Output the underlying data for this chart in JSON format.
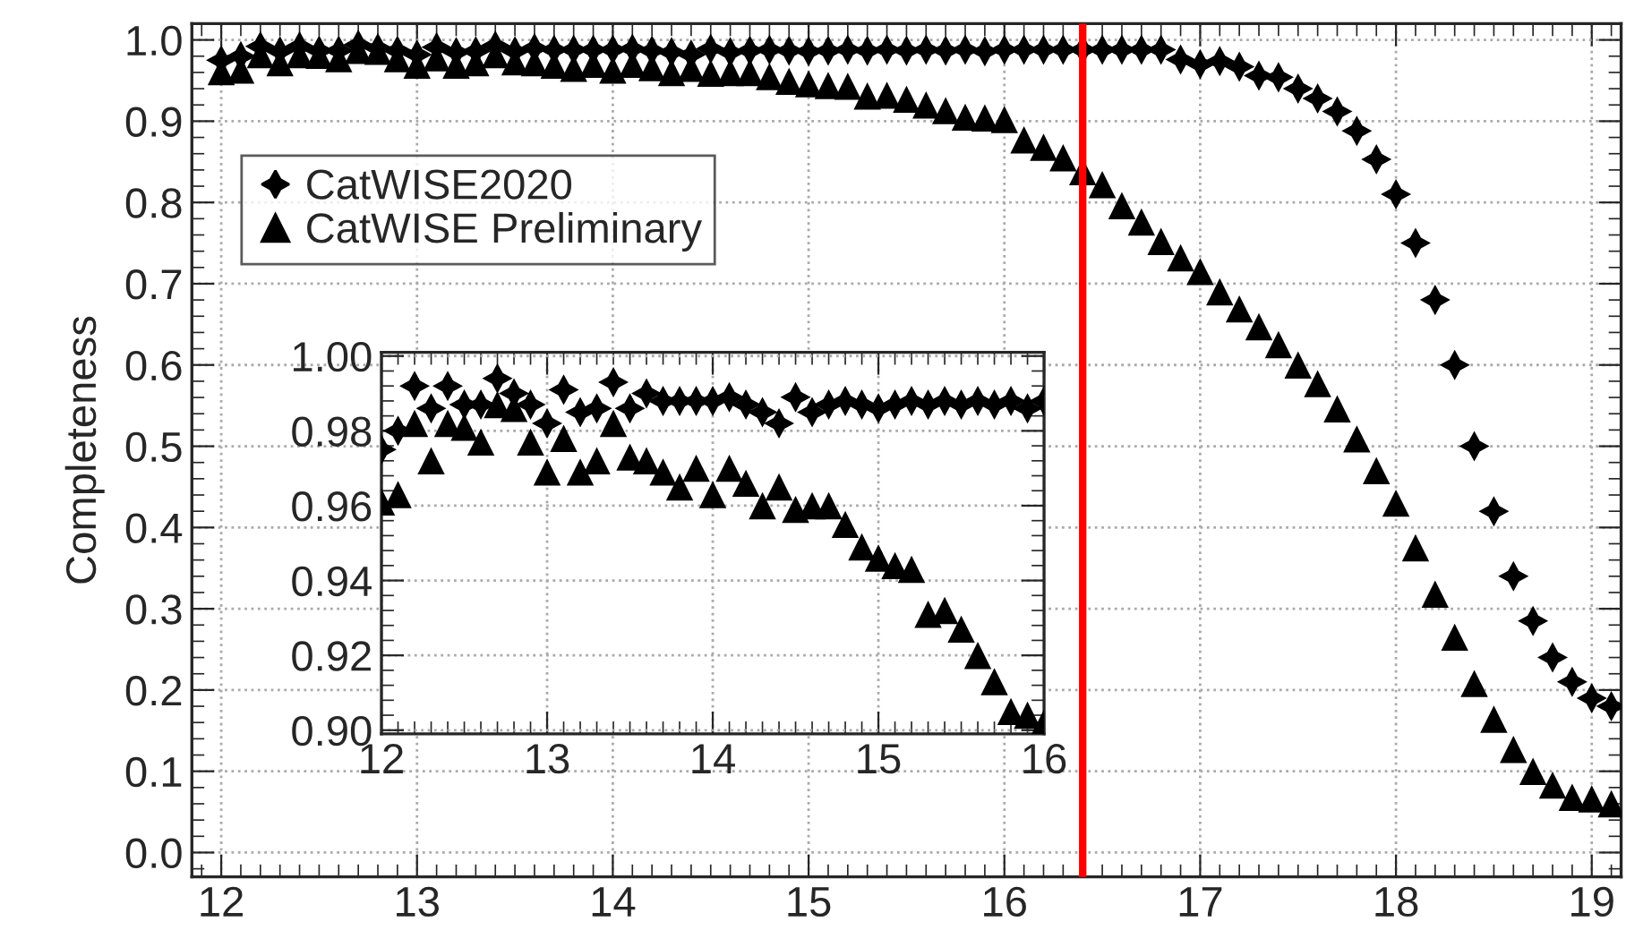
{
  "chart_data": [
    {
      "type": "scatter",
      "ylabel": "Completeness",
      "xlim": [
        11.85,
        19.15
      ],
      "ylim": [
        -0.03,
        1.02
      ],
      "xticks": [
        12,
        13,
        14,
        15,
        16,
        17,
        18,
        19
      ],
      "yticks": [
        {
          "value": 0,
          "label": "0.0"
        },
        0.1,
        0.2,
        0.3,
        0.4,
        0.5,
        0.6,
        0.7,
        0.8,
        0.9,
        {
          "value": 1,
          "label": "1.0"
        }
      ],
      "grid": true,
      "legend": "top left",
      "ref_lines": [
        {
          "axis": "x",
          "value": 16.4,
          "color": "#ff0000"
        }
      ],
      "series": [
        {
          "name": "CatWISE2020",
          "color": "#000000",
          "marker": "star",
          "x": [
            12.0,
            12.1,
            12.2,
            12.3,
            12.4,
            12.5,
            12.6,
            12.7,
            12.8,
            12.9,
            13.0,
            13.1,
            13.2,
            13.3,
            13.4,
            13.5,
            13.6,
            13.7,
            13.8,
            13.9,
            14.0,
            14.1,
            14.2,
            14.3,
            14.4,
            14.5,
            14.6,
            14.7,
            14.8,
            14.9,
            15.0,
            15.1,
            15.2,
            15.3,
            15.4,
            15.5,
            15.6,
            15.7,
            15.8,
            15.9,
            16.0,
            16.1,
            16.2,
            16.3,
            16.4,
            16.5,
            16.6,
            16.7,
            16.8,
            16.9,
            17.0,
            17.1,
            17.2,
            17.3,
            17.4,
            17.5,
            17.6,
            17.7,
            17.8,
            17.9,
            18.0,
            18.1,
            18.2,
            18.3,
            18.4,
            18.5,
            18.6,
            18.7,
            18.8,
            18.9,
            19.0,
            19.1
          ],
          "values": [
            0.975,
            0.98,
            0.992,
            0.986,
            0.992,
            0.987,
            0.987,
            0.994,
            0.99,
            0.987,
            0.982,
            0.991,
            0.985,
            0.986,
            0.993,
            0.986,
            0.99,
            0.988,
            0.988,
            0.988,
            0.988,
            0.989,
            0.987,
            0.985,
            0.982,
            0.989,
            0.985,
            0.987,
            0.988,
            0.987,
            0.986,
            0.987,
            0.988,
            0.987,
            0.988,
            0.987,
            0.988,
            0.987,
            0.988,
            0.986,
            0.988,
            0.988,
            0.988,
            0.988,
            0.988,
            0.988,
            0.988,
            0.988,
            0.988,
            0.976,
            0.97,
            0.974,
            0.967,
            0.956,
            0.954,
            0.94,
            0.928,
            0.912,
            0.888,
            0.853,
            0.81,
            0.75,
            0.68,
            0.6,
            0.5,
            0.42,
            0.34,
            0.285,
            0.24,
            0.21,
            0.19,
            0.18
          ]
        },
        {
          "name": "CatWISE Preliminary",
          "color": "#000000",
          "marker": "triangle",
          "x": [
            12.0,
            12.1,
            12.2,
            12.3,
            12.4,
            12.5,
            12.6,
            12.7,
            12.8,
            12.9,
            13.0,
            13.1,
            13.2,
            13.3,
            13.4,
            13.5,
            13.6,
            13.7,
            13.8,
            13.9,
            14.0,
            14.1,
            14.2,
            14.3,
            14.4,
            14.5,
            14.6,
            14.7,
            14.8,
            14.9,
            15.0,
            15.1,
            15.2,
            15.3,
            15.4,
            15.5,
            15.6,
            15.7,
            15.8,
            15.9,
            16.0,
            16.1,
            16.2,
            16.3,
            16.4,
            16.5,
            16.6,
            16.7,
            16.8,
            16.9,
            17.0,
            17.1,
            17.2,
            17.3,
            17.4,
            17.5,
            17.6,
            17.7,
            17.8,
            17.9,
            18.0,
            18.1,
            18.2,
            18.3,
            18.4,
            18.5,
            18.6,
            18.7,
            18.8,
            18.9,
            19.0,
            19.1
          ],
          "values": [
            0.961,
            0.963,
            0.982,
            0.972,
            0.982,
            0.981,
            0.977,
            0.987,
            0.986,
            0.977,
            0.969,
            0.978,
            0.969,
            0.972,
            0.982,
            0.973,
            0.972,
            0.969,
            0.965,
            0.97,
            0.963,
            0.97,
            0.966,
            0.96,
            0.965,
            0.959,
            0.96,
            0.96,
            0.955,
            0.949,
            0.946,
            0.944,
            0.943,
            0.931,
            0.932,
            0.927,
            0.92,
            0.913,
            0.905,
            0.904,
            0.902,
            0.877,
            0.868,
            0.855,
            0.838,
            0.822,
            0.796,
            0.776,
            0.752,
            0.732,
            0.715,
            0.69,
            0.669,
            0.647,
            0.625,
            0.6,
            0.577,
            0.546,
            0.509,
            0.47,
            0.43,
            0.375,
            0.318,
            0.265,
            0.208,
            0.164,
            0.127,
            0.1,
            0.083,
            0.068,
            0.066,
            0.06
          ]
        }
      ]
    },
    {
      "type": "scatter",
      "xlim": [
        12,
        16
      ],
      "ylim": [
        0.899,
        1.001
      ],
      "xticks": [
        12,
        13,
        14,
        15,
        16
      ],
      "yticks": [
        {
          "value": 0.9,
          "label": "0.90"
        },
        0.92,
        0.94,
        0.96,
        0.98,
        {
          "value": 1.0,
          "label": "1.00"
        }
      ],
      "grid": true,
      "series": [
        {
          "color": "#000000",
          "marker": "star",
          "x": [
            12.0,
            12.1,
            12.2,
            12.3,
            12.4,
            12.5,
            12.6,
            12.7,
            12.8,
            12.9,
            13.0,
            13.1,
            13.2,
            13.3,
            13.4,
            13.5,
            13.6,
            13.7,
            13.8,
            13.9,
            14.0,
            14.1,
            14.2,
            14.3,
            14.4,
            14.5,
            14.6,
            14.7,
            14.8,
            14.9,
            15.0,
            15.1,
            15.2,
            15.3,
            15.4,
            15.5,
            15.6,
            15.7,
            15.8,
            15.9,
            16.0
          ],
          "values": [
            0.975,
            0.98,
            0.992,
            0.986,
            0.992,
            0.987,
            0.987,
            0.994,
            0.99,
            0.987,
            0.982,
            0.991,
            0.985,
            0.986,
            0.993,
            0.986,
            0.99,
            0.988,
            0.988,
            0.988,
            0.988,
            0.989,
            0.987,
            0.985,
            0.982,
            0.989,
            0.985,
            0.987,
            0.988,
            0.987,
            0.986,
            0.987,
            0.988,
            0.987,
            0.988,
            0.987,
            0.988,
            0.987,
            0.988,
            0.986,
            0.988
          ]
        },
        {
          "color": "#000000",
          "marker": "triangle",
          "x": [
            12.0,
            12.1,
            12.2,
            12.3,
            12.4,
            12.5,
            12.6,
            12.7,
            12.8,
            12.9,
            13.0,
            13.1,
            13.2,
            13.3,
            13.4,
            13.5,
            13.6,
            13.7,
            13.8,
            13.9,
            14.0,
            14.1,
            14.2,
            14.3,
            14.4,
            14.5,
            14.6,
            14.7,
            14.8,
            14.9,
            15.0,
            15.1,
            15.2,
            15.3,
            15.4,
            15.5,
            15.6,
            15.7,
            15.8,
            15.9,
            16.0
          ],
          "values": [
            0.961,
            0.963,
            0.982,
            0.972,
            0.982,
            0.981,
            0.977,
            0.987,
            0.986,
            0.977,
            0.969,
            0.978,
            0.969,
            0.972,
            0.982,
            0.973,
            0.972,
            0.969,
            0.965,
            0.97,
            0.963,
            0.97,
            0.966,
            0.96,
            0.965,
            0.959,
            0.96,
            0.96,
            0.955,
            0.949,
            0.946,
            0.944,
            0.943,
            0.931,
            0.932,
            0.927,
            0.92,
            0.913,
            0.905,
            0.904,
            0.902
          ]
        }
      ]
    }
  ]
}
